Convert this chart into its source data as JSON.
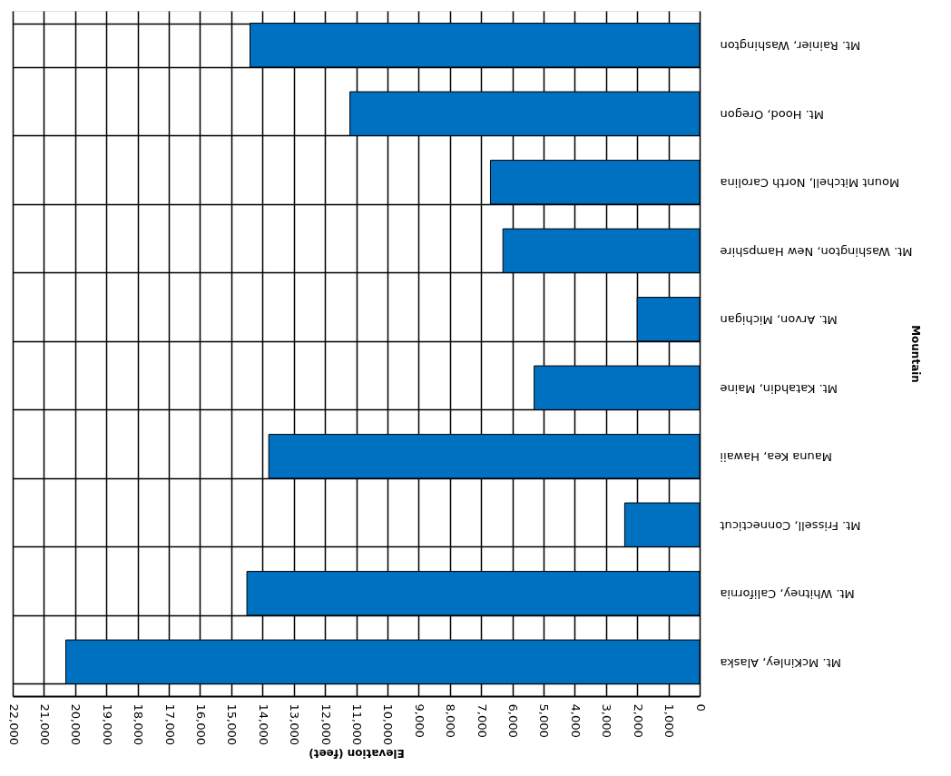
{
  "chart_data": {
    "type": "bar",
    "orientation": "horizontal",
    "xlabel": "Elevation (feet)",
    "ylabel": "Mountain",
    "categories": [
      "Mt. Rainier, Washington",
      "Mt. Hood, Oregon",
      "Mount Mitchell, North Carolina",
      "Mt. Washington, New Hampshire",
      "Mt. Arvon, Michigan",
      "Mt. Katahdin, Maine",
      "Mauna Kea, Hawaii",
      "Mt. Frissell, Connecticut",
      "Mt. Whitney, California",
      "Mt. McKinley, Alaska"
    ],
    "values": [
      14400,
      11200,
      6700,
      6300,
      2000,
      5300,
      13800,
      2400,
      14500,
      20300
    ],
    "color": "#0070c0",
    "xlim": [
      22000,
      0
    ],
    "xticks": [
      0,
      {
        "value": 1000,
        "label": "1,000"
      },
      {
        "value": 2000,
        "label": "2,000"
      },
      {
        "value": 3000,
        "label": "3,000"
      },
      {
        "value": 4000,
        "label": "4,000"
      },
      {
        "value": 5000,
        "label": "5,000"
      },
      {
        "value": 6000,
        "label": "6,000"
      },
      {
        "value": 7000,
        "label": "7,000"
      },
      {
        "value": 8000,
        "label": "8,000"
      },
      {
        "value": 9000,
        "label": "9,000"
      },
      {
        "value": 10000,
        "label": "10,000"
      },
      {
        "value": 11000,
        "label": "11,000"
      },
      {
        "value": 12000,
        "label": "12,000"
      },
      {
        "value": 13000,
        "label": "13,000"
      },
      {
        "value": 14000,
        "label": "14,000"
      },
      {
        "value": 15000,
        "label": "15,000"
      },
      {
        "value": 16000,
        "label": "16,000"
      },
      {
        "value": 17000,
        "label": "17,000"
      },
      {
        "value": 18000,
        "label": "18,000"
      },
      {
        "value": 19000,
        "label": "19,000"
      },
      {
        "value": 20000,
        "label": "20,000"
      },
      {
        "value": 21000,
        "label": "21,000"
      },
      {
        "value": 22000,
        "label": "22,000"
      }
    ],
    "grid": true
  }
}
